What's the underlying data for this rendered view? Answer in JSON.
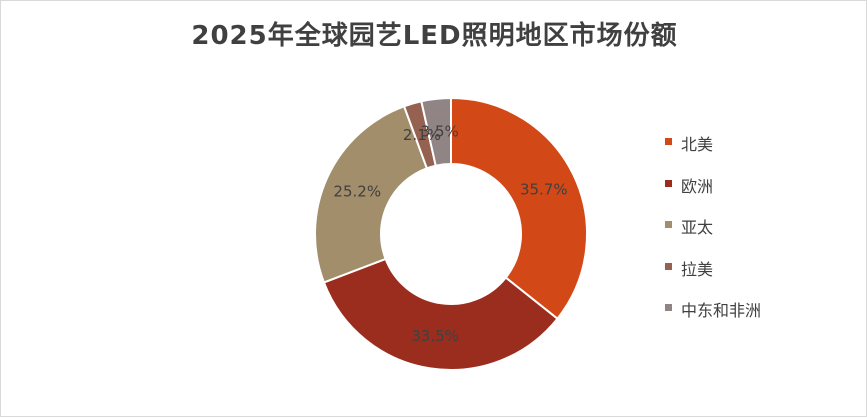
{
  "chart_data": {
    "type": "donut",
    "title": "2025年全球园艺LED照明地区市场份额",
    "categories": [
      "北美",
      "欧洲",
      "亚太",
      "拉美",
      "中东和非洲"
    ],
    "values": [
      35.7,
      33.5,
      25.2,
      2.1,
      3.5
    ],
    "value_labels": [
      "35.7%",
      "33.5%",
      "25.2%",
      "2.1%",
      "3.5%"
    ],
    "colors": [
      "#d34817",
      "#9b2d1f",
      "#a28e6a",
      "#956251",
      "#918485"
    ],
    "legend_position": "right"
  }
}
